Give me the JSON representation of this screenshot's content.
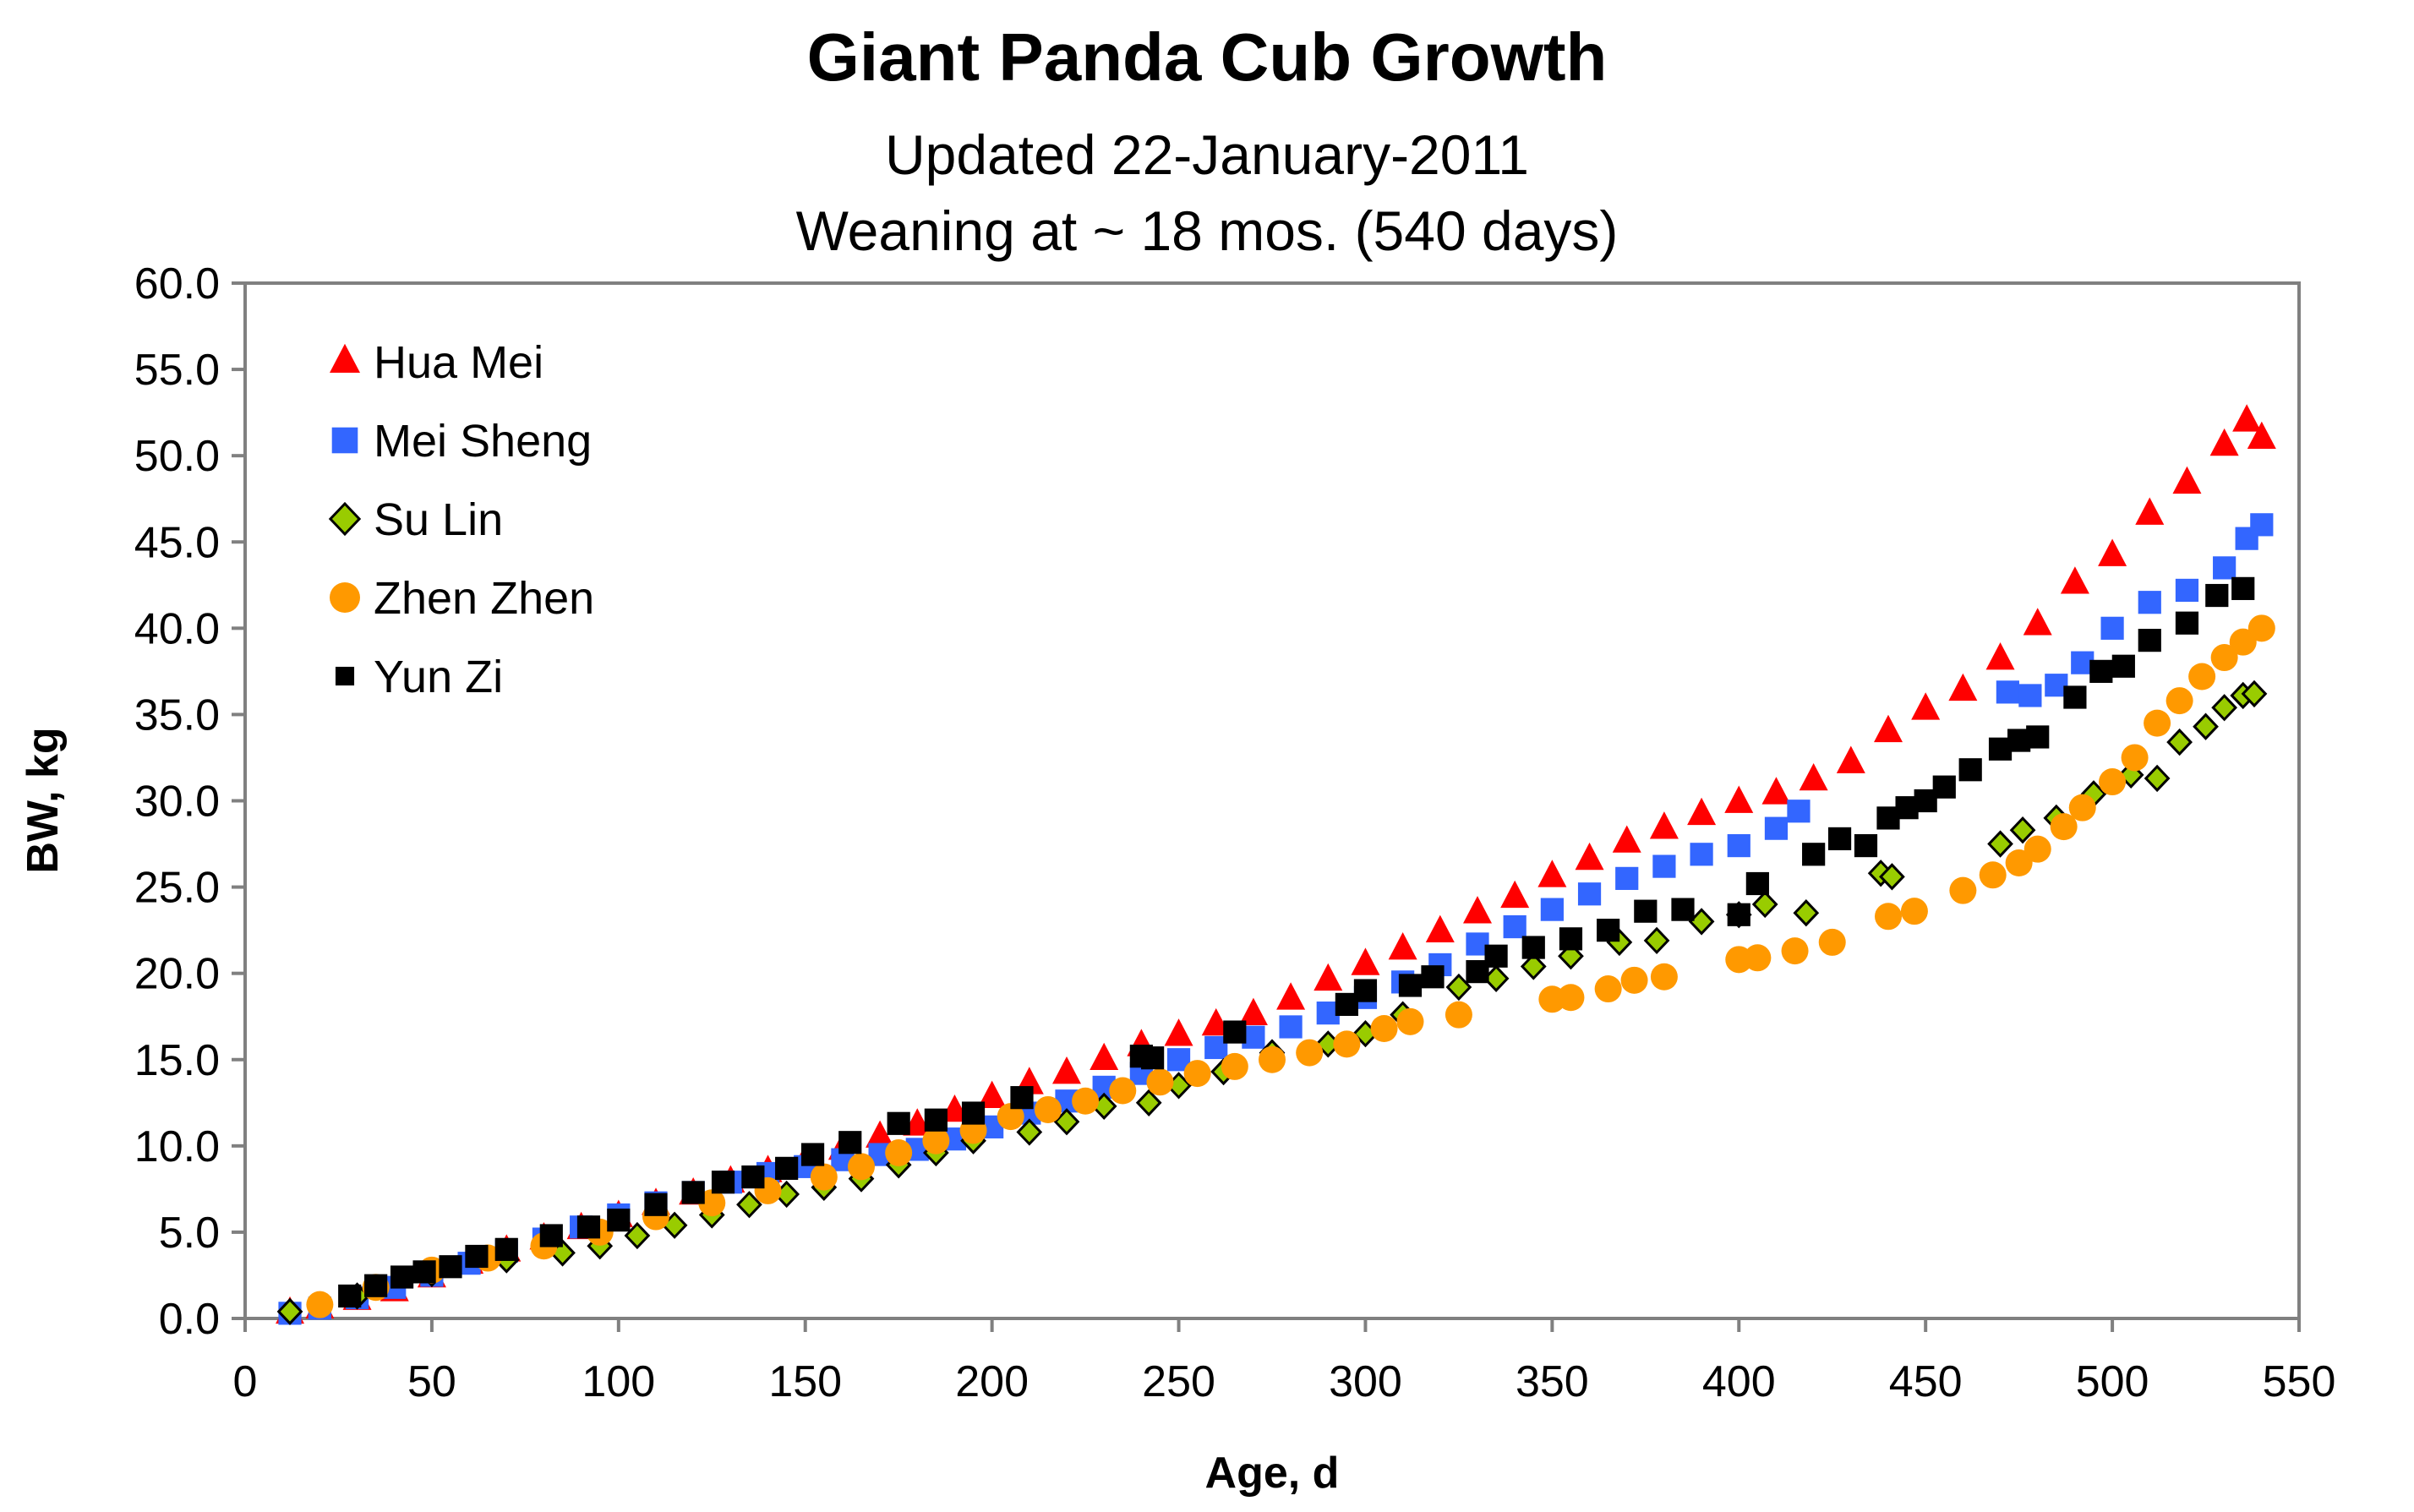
{
  "chart_data": {
    "type": "scatter",
    "title": "Giant Panda Cub Growth",
    "subtitle_lines": [
      "Updated 22-January-2011",
      "Weaning at ~ 18 mos. (540 days)"
    ],
    "xlabel": "Age, d",
    "ylabel": "BW, kg",
    "xlim": [
      0,
      550
    ],
    "ylim": [
      0,
      60
    ],
    "x_ticks": [
      0,
      50,
      100,
      150,
      200,
      250,
      300,
      350,
      400,
      450,
      500,
      550
    ],
    "x_tick_labels": [
      "0",
      "50",
      "100",
      "150",
      "200",
      "250",
      "300",
      "350",
      "400",
      "450",
      "500",
      "550"
    ],
    "y_ticks": [
      0,
      5,
      10,
      15,
      20,
      25,
      30,
      35,
      40,
      45,
      50,
      55,
      60
    ],
    "y_tick_labels": [
      "0.0",
      "5.0",
      "10.0",
      "15.0",
      "20.0",
      "25.0",
      "30.0",
      "35.0",
      "40.0",
      "45.0",
      "50.0",
      "55.0",
      "60.0"
    ],
    "grid": false,
    "legend_position": "top-left",
    "series": [
      {
        "name": "Hua Mei",
        "marker": "triangle",
        "color": "#ff0000",
        "points": [
          [
            12,
            0.3
          ],
          [
            20,
            0.6
          ],
          [
            30,
            1.1
          ],
          [
            40,
            1.6
          ],
          [
            50,
            2.4
          ],
          [
            60,
            3.2
          ],
          [
            70,
            3.9
          ],
          [
            80,
            4.6
          ],
          [
            90,
            5.2
          ],
          [
            100,
            5.9
          ],
          [
            110,
            6.6
          ],
          [
            120,
            7.2
          ],
          [
            130,
            7.9
          ],
          [
            140,
            8.5
          ],
          [
            150,
            9.1
          ],
          [
            160,
            9.8
          ],
          [
            170,
            10.5
          ],
          [
            180,
            11.2
          ],
          [
            190,
            12.0
          ],
          [
            200,
            12.8
          ],
          [
            210,
            13.6
          ],
          [
            220,
            14.2
          ],
          [
            230,
            15.0
          ],
          [
            240,
            15.8
          ],
          [
            250,
            16.4
          ],
          [
            260,
            17.0
          ],
          [
            270,
            17.6
          ],
          [
            280,
            18.5
          ],
          [
            290,
            19.6
          ],
          [
            300,
            20.5
          ],
          [
            310,
            21.4
          ],
          [
            320,
            22.4
          ],
          [
            330,
            23.5
          ],
          [
            340,
            24.4
          ],
          [
            350,
            25.6
          ],
          [
            360,
            26.6
          ],
          [
            370,
            27.6
          ],
          [
            380,
            28.4
          ],
          [
            390,
            29.2
          ],
          [
            400,
            29.9
          ],
          [
            410,
            30.4
          ],
          [
            420,
            31.2
          ],
          [
            430,
            32.2
          ],
          [
            440,
            34.0
          ],
          [
            450,
            35.3
          ],
          [
            460,
            36.4
          ],
          [
            470,
            38.2
          ],
          [
            480,
            40.2
          ],
          [
            490,
            42.6
          ],
          [
            500,
            44.2
          ],
          [
            510,
            46.6
          ],
          [
            520,
            48.4
          ],
          [
            530,
            50.6
          ],
          [
            536,
            52.0
          ],
          [
            540,
            51.0
          ]
        ]
      },
      {
        "name": "Mei Sheng",
        "marker": "square",
        "color": "#3366ff",
        "points": [
          [
            12,
            0.3
          ],
          [
            20,
            0.6
          ],
          [
            30,
            1.2
          ],
          [
            40,
            1.8
          ],
          [
            50,
            2.5
          ],
          [
            60,
            3.2
          ],
          [
            70,
            3.9
          ],
          [
            80,
            4.6
          ],
          [
            90,
            5.3
          ],
          [
            100,
            6.0
          ],
          [
            110,
            6.7
          ],
          [
            120,
            7.3
          ],
          [
            130,
            7.9
          ],
          [
            140,
            8.4
          ],
          [
            150,
            8.8
          ],
          [
            160,
            9.2
          ],
          [
            170,
            9.5
          ],
          [
            180,
            9.8
          ],
          [
            190,
            10.4
          ],
          [
            200,
            11.1
          ],
          [
            210,
            11.9
          ],
          [
            220,
            12.6
          ],
          [
            230,
            13.4
          ],
          [
            240,
            14.2
          ],
          [
            250,
            15.0
          ],
          [
            260,
            15.7
          ],
          [
            270,
            16.3
          ],
          [
            280,
            16.9
          ],
          [
            290,
            17.7
          ],
          [
            300,
            18.6
          ],
          [
            310,
            19.5
          ],
          [
            320,
            20.5
          ],
          [
            330,
            21.7
          ],
          [
            340,
            22.7
          ],
          [
            350,
            23.7
          ],
          [
            360,
            24.6
          ],
          [
            370,
            25.5
          ],
          [
            380,
            26.2
          ],
          [
            390,
            26.9
          ],
          [
            400,
            27.4
          ],
          [
            410,
            28.4
          ],
          [
            416,
            29.4
          ],
          [
            472,
            36.3
          ],
          [
            478,
            36.1
          ],
          [
            485,
            36.7
          ],
          [
            492,
            38.0
          ],
          [
            500,
            40.0
          ],
          [
            510,
            41.5
          ],
          [
            520,
            42.2
          ],
          [
            530,
            43.5
          ],
          [
            536,
            45.2
          ],
          [
            540,
            46.0
          ]
        ]
      },
      {
        "name": "Su Lin",
        "marker": "diamond",
        "color": "#99cc00",
        "points": [
          [
            12,
            0.4
          ],
          [
            30,
            1.3
          ],
          [
            50,
            2.6
          ],
          [
            70,
            3.4
          ],
          [
            85,
            3.8
          ],
          [
            95,
            4.2
          ],
          [
            105,
            4.8
          ],
          [
            115,
            5.4
          ],
          [
            125,
            6.0
          ],
          [
            135,
            6.6
          ],
          [
            145,
            7.2
          ],
          [
            155,
            7.6
          ],
          [
            165,
            8.1
          ],
          [
            175,
            8.9
          ],
          [
            185,
            9.6
          ],
          [
            195,
            10.3
          ],
          [
            210,
            10.8
          ],
          [
            220,
            11.4
          ],
          [
            230,
            12.3
          ],
          [
            242,
            12.5
          ],
          [
            250,
            13.5
          ],
          [
            262,
            14.3
          ],
          [
            275,
            15.4
          ],
          [
            290,
            15.9
          ],
          [
            300,
            16.5
          ],
          [
            310,
            17.6
          ],
          [
            325,
            19.2
          ],
          [
            335,
            19.7
          ],
          [
            345,
            20.4
          ],
          [
            355,
            21.0
          ],
          [
            368,
            21.8
          ],
          [
            378,
            21.9
          ],
          [
            390,
            23.0
          ],
          [
            400,
            23.4
          ],
          [
            407,
            24.0
          ],
          [
            418,
            23.5
          ],
          [
            438,
            25.8
          ],
          [
            441,
            25.6
          ],
          [
            470,
            27.5
          ],
          [
            476,
            28.3
          ],
          [
            485,
            29.0
          ],
          [
            495,
            30.4
          ],
          [
            505,
            31.5
          ],
          [
            512,
            31.3
          ],
          [
            518,
            33.4
          ],
          [
            525,
            34.3
          ],
          [
            530,
            35.4
          ],
          [
            535,
            36.1
          ],
          [
            538,
            36.2
          ]
        ]
      },
      {
        "name": "Zhen Zhen",
        "marker": "circle",
        "color": "#ff9900",
        "points": [
          [
            20,
            0.8
          ],
          [
            35,
            1.8
          ],
          [
            50,
            2.8
          ],
          [
            65,
            3.5
          ],
          [
            80,
            4.2
          ],
          [
            95,
            5.0
          ],
          [
            110,
            5.9
          ],
          [
            125,
            6.7
          ],
          [
            140,
            7.4
          ],
          [
            155,
            8.2
          ],
          [
            165,
            8.8
          ],
          [
            175,
            9.6
          ],
          [
            185,
            10.3
          ],
          [
            195,
            10.9
          ],
          [
            205,
            11.7
          ],
          [
            215,
            12.1
          ],
          [
            225,
            12.6
          ],
          [
            235,
            13.2
          ],
          [
            245,
            13.7
          ],
          [
            255,
            14.2
          ],
          [
            265,
            14.6
          ],
          [
            275,
            15.0
          ],
          [
            285,
            15.4
          ],
          [
            295,
            15.9
          ],
          [
            305,
            16.8
          ],
          [
            312,
            17.2
          ],
          [
            325,
            17.6
          ],
          [
            350,
            18.5
          ],
          [
            355,
            18.6
          ],
          [
            365,
            19.1
          ],
          [
            372,
            19.6
          ],
          [
            380,
            19.8
          ],
          [
            400,
            20.8
          ],
          [
            405,
            20.9
          ],
          [
            415,
            21.3
          ],
          [
            425,
            21.8
          ],
          [
            440,
            23.3
          ],
          [
            447,
            23.6
          ],
          [
            460,
            24.8
          ],
          [
            468,
            25.7
          ],
          [
            475,
            26.4
          ],
          [
            480,
            27.2
          ],
          [
            487,
            28.5
          ],
          [
            492,
            29.6
          ],
          [
            500,
            31.1
          ],
          [
            506,
            32.5
          ],
          [
            512,
            34.5
          ],
          [
            518,
            35.8
          ],
          [
            524,
            37.2
          ],
          [
            530,
            38.3
          ],
          [
            535,
            39.2
          ],
          [
            540,
            40.0
          ]
        ]
      },
      {
        "name": "Yun Zi",
        "marker": "square",
        "color": "#000000",
        "points": [
          [
            28,
            1.3
          ],
          [
            35,
            1.9
          ],
          [
            42,
            2.4
          ],
          [
            48,
            2.7
          ],
          [
            55,
            3.0
          ],
          [
            62,
            3.6
          ],
          [
            70,
            4.0
          ],
          [
            82,
            4.8
          ],
          [
            92,
            5.3
          ],
          [
            100,
            5.7
          ],
          [
            110,
            6.6
          ],
          [
            120,
            7.3
          ],
          [
            128,
            7.9
          ],
          [
            136,
            8.2
          ],
          [
            145,
            8.7
          ],
          [
            152,
            9.5
          ],
          [
            162,
            10.2
          ],
          [
            175,
            11.3
          ],
          [
            185,
            11.5
          ],
          [
            195,
            11.9
          ],
          [
            208,
            12.8
          ],
          [
            240,
            15.2
          ],
          [
            243,
            15.1
          ],
          [
            265,
            16.6
          ],
          [
            295,
            18.2
          ],
          [
            300,
            19.0
          ],
          [
            312,
            19.3
          ],
          [
            318,
            19.8
          ],
          [
            330,
            20.1
          ],
          [
            335,
            21.0
          ],
          [
            345,
            21.5
          ],
          [
            355,
            22.0
          ],
          [
            365,
            22.5
          ],
          [
            375,
            23.6
          ],
          [
            385,
            23.7
          ],
          [
            400,
            23.4
          ],
          [
            405,
            25.2
          ],
          [
            420,
            26.9
          ],
          [
            427,
            27.8
          ],
          [
            434,
            27.4
          ],
          [
            440,
            29.0
          ],
          [
            445,
            29.6
          ],
          [
            450,
            30.0
          ],
          [
            455,
            30.8
          ],
          [
            462,
            31.8
          ],
          [
            470,
            33.0
          ],
          [
            475,
            33.5
          ],
          [
            480,
            33.7
          ],
          [
            490,
            36.0
          ],
          [
            497,
            37.5
          ],
          [
            503,
            37.8
          ],
          [
            510,
            39.3
          ],
          [
            520,
            40.3
          ],
          [
            528,
            41.9
          ],
          [
            535,
            42.3
          ]
        ]
      }
    ]
  }
}
